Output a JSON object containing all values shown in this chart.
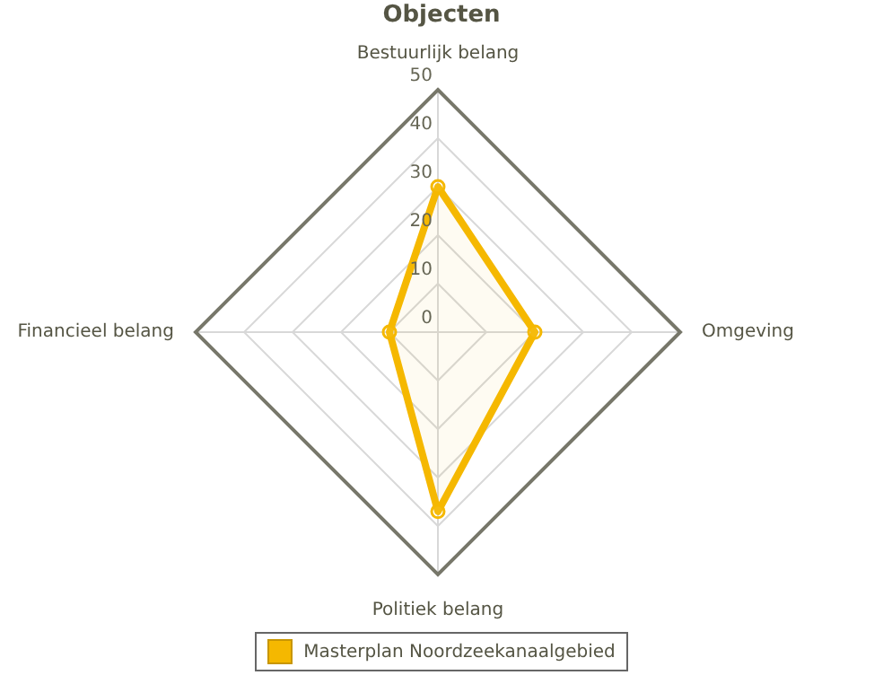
{
  "chart_data": {
    "type": "radar",
    "title": "Objecten",
    "categories": [
      "Bestuurlijk belang",
      "Omgeving",
      "Politiek belang",
      "Financieel belang"
    ],
    "series": [
      {
        "name": "Masterplan Noordzeekanaalgebied",
        "color": "#f5b800",
        "values": [
          30,
          20,
          37,
          10
        ]
      }
    ],
    "ylim": [
      0,
      50
    ],
    "yticks": [
      0,
      10,
      20,
      30,
      40,
      50
    ],
    "grid": true,
    "legend": "bottom",
    "marker": "circle"
  }
}
